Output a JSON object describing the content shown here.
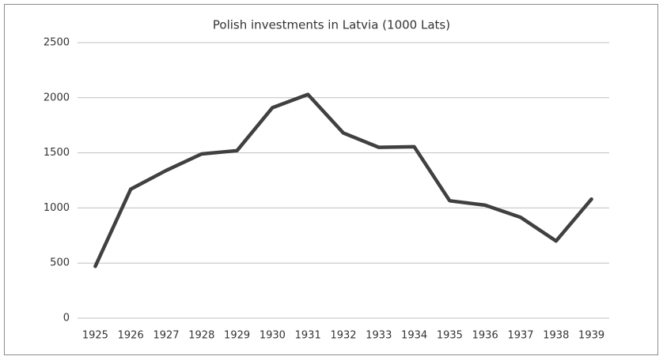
{
  "chart_data": {
    "type": "line",
    "title": "Polish investments in Latvia (1000 Lats)",
    "categories": [
      "1925",
      "1926",
      "1927",
      "1928",
      "1929",
      "1930",
      "1931",
      "1932",
      "1933",
      "1934",
      "1935",
      "1936",
      "1937",
      "1938",
      "1939"
    ],
    "values": [
      470,
      1170,
      1340,
      1490,
      1520,
      1910,
      2030,
      1680,
      1550,
      1555,
      1065,
      1025,
      915,
      700,
      1080
    ],
    "color": "#404040",
    "ylim": [
      0,
      2500
    ],
    "yticks": [
      0,
      500,
      1000,
      1500,
      2000,
      2500
    ],
    "grid": true
  }
}
